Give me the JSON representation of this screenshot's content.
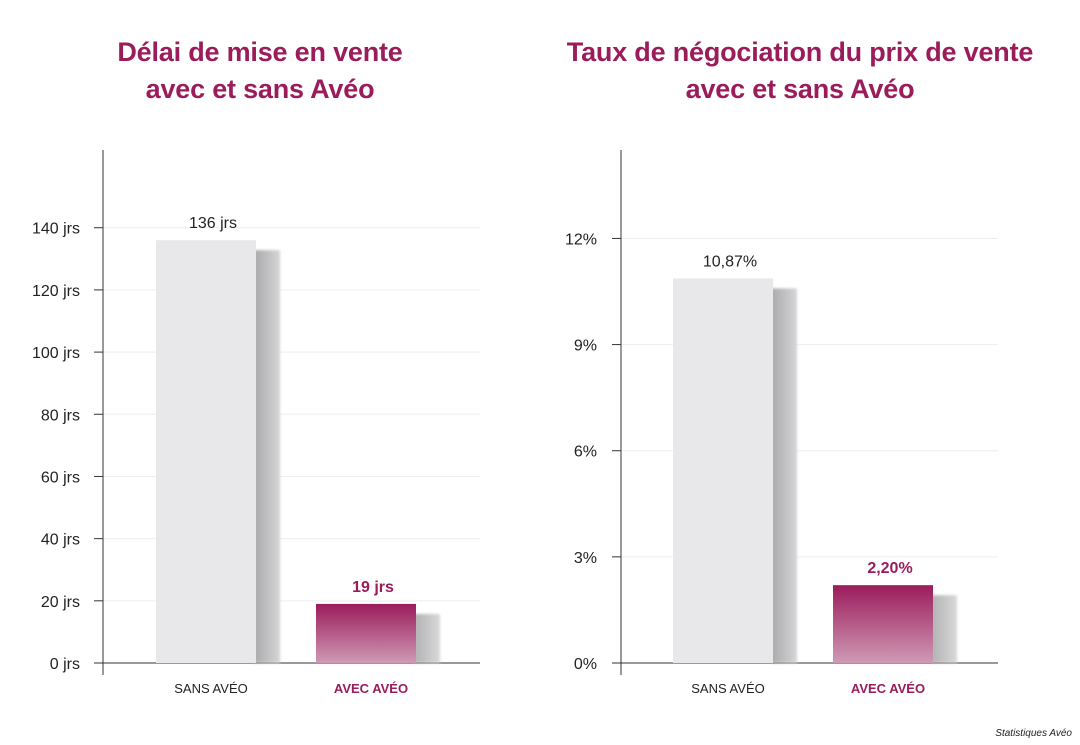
{
  "chart_data": [
    {
      "type": "bar",
      "title_lines": [
        "Délai de mise en vente",
        "avec et sans Avéo"
      ],
      "categories": [
        "SANS AVÉO",
        "AVEC AVÉO"
      ],
      "values": [
        136,
        19
      ],
      "data_labels": [
        "136 jrs",
        "19 jrs"
      ],
      "yticks": [
        0,
        20,
        40,
        60,
        80,
        100,
        120,
        140
      ],
      "ytick_labels": [
        "0 jrs",
        "20 jrs",
        "40 jrs",
        "60 jrs",
        "80 jrs",
        "100 jrs",
        "120 jrs",
        "140 jrs"
      ],
      "ylim": [
        0,
        165
      ],
      "grid": true,
      "legend": "none"
    },
    {
      "type": "bar",
      "title_lines": [
        "Taux de négociation du prix de vente",
        "avec et sans Avéo"
      ],
      "categories": [
        "SANS AVÉO",
        "AVEC AVÉO"
      ],
      "values": [
        10.87,
        2.2
      ],
      "data_labels": [
        "10,87%",
        "2,20%"
      ],
      "yticks": [
        0,
        3,
        6,
        9,
        12
      ],
      "ytick_labels": [
        "0%",
        "3%",
        "6%",
        "9%",
        "12%"
      ],
      "ylim": [
        0,
        14.5
      ],
      "grid": true,
      "legend": "none"
    }
  ],
  "footnote": "Statistiques Avéo",
  "colors": {
    "accent": "#9b1c5b",
    "accent_light": "#c98aa9",
    "bar_neutral": "#e8e8ea",
    "shadow": "#b9b9bb",
    "axis": "#333333",
    "grid": "#eeeeee",
    "text": "#222222"
  }
}
